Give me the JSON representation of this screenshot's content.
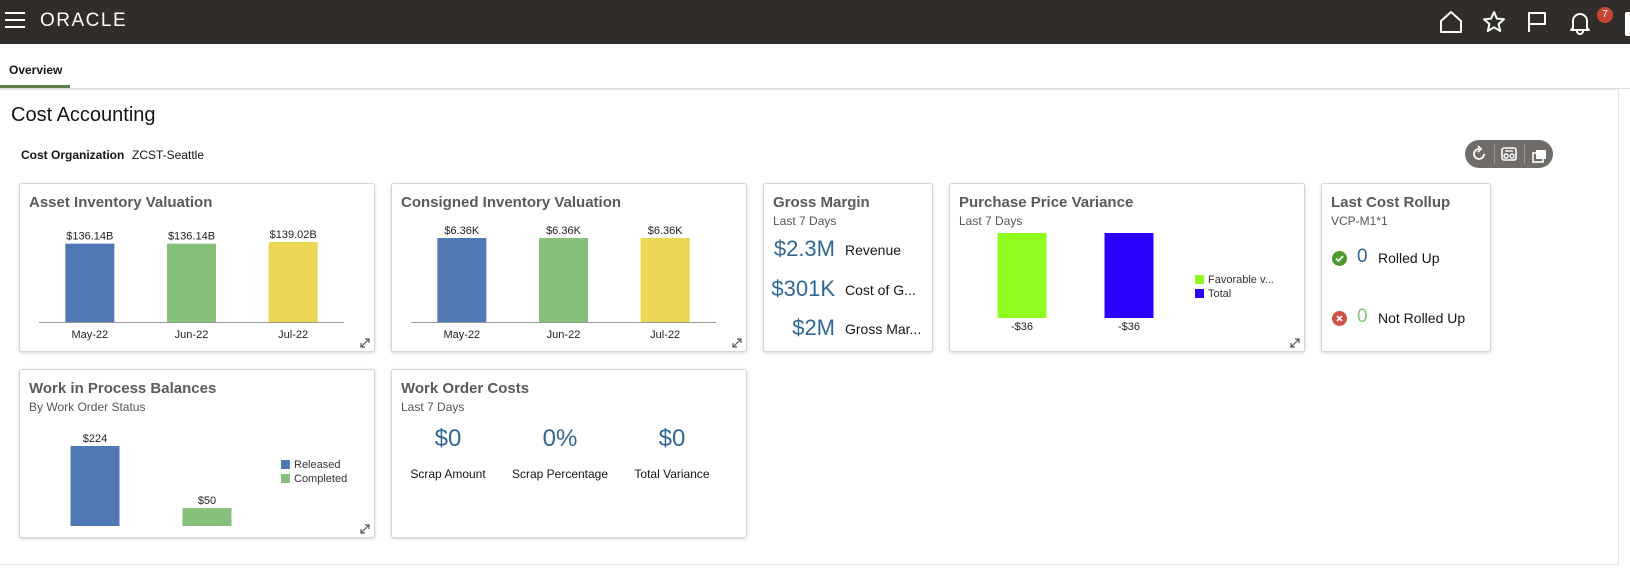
{
  "header": {
    "logo": "ORACLE",
    "notification_count": "7",
    "icons": [
      "menu-icon",
      "home-icon",
      "star-icon",
      "flag-icon",
      "bell-icon"
    ]
  },
  "tabs": [
    {
      "label": "Overview",
      "active": true
    }
  ],
  "page": {
    "title": "Cost Accounting",
    "org_label": "Cost Organization",
    "org_value": "ZCST-Seattle"
  },
  "toolbar": {
    "icons": [
      "refresh-icon",
      "settings-icon",
      "copy-icon"
    ]
  },
  "colors": {
    "blue": "#4f78b5",
    "green": "#87c07a",
    "yellow": "#ecd653",
    "lime": "#8ffc1e",
    "indigo": "#2c00fd",
    "kpi_blue": "#2f6694",
    "success": "#4c9a2a",
    "error": "#d25145"
  },
  "asset_inventory": {
    "title": "Asset Inventory Valuation",
    "chart_data": {
      "type": "bar",
      "categories": [
        "May-22",
        "Jun-22",
        "Jul-22"
      ],
      "values": [
        136.14,
        136.14,
        139.02
      ],
      "value_labels": [
        "$136.14B",
        "$136.14B",
        "$139.02B"
      ],
      "ylim": [
        0,
        139.02
      ]
    }
  },
  "consigned_inventory": {
    "title": "Consigned Inventory Valuation",
    "chart_data": {
      "type": "bar",
      "categories": [
        "May-22",
        "Jun-22",
        "Jul-22"
      ],
      "values": [
        6.36,
        6.36,
        6.36
      ],
      "value_labels": [
        "$6.36K",
        "$6.36K",
        "$6.36K"
      ],
      "ylim": [
        0,
        6.36
      ]
    }
  },
  "gross_margin": {
    "title": "Gross Margin",
    "subtitle": "Last 7 Days",
    "rows": [
      {
        "value": "$2.3M",
        "label": "Revenue"
      },
      {
        "value": "$301K",
        "label": "Cost of G..."
      },
      {
        "value": "$2M",
        "label": "Gross Mar..."
      }
    ]
  },
  "purchase_price_variance": {
    "title": "Purchase Price Variance",
    "subtitle": "Last 7 Days",
    "chart_data": {
      "type": "bar",
      "series": [
        {
          "name": "Favorable v...",
          "values": [
            -36
          ]
        },
        {
          "name": "Total",
          "values": [
            -36
          ]
        }
      ],
      "value_labels": [
        "-$36",
        "-$36"
      ]
    }
  },
  "last_cost_rollup": {
    "title": "Last Cost Rollup",
    "subtitle": "VCP-M1*1",
    "rows": [
      {
        "count": "0",
        "label": "Rolled Up",
        "status": "success"
      },
      {
        "count": "0",
        "label": "Not Rolled Up",
        "status": "error"
      }
    ]
  },
  "wip_balances": {
    "title": "Work in Process Balances",
    "subtitle": "By Work Order Status",
    "chart_data": {
      "type": "bar",
      "series": [
        {
          "name": "Released",
          "values": [
            224
          ]
        },
        {
          "name": "Completed",
          "values": [
            50
          ]
        }
      ],
      "value_labels": [
        "$224",
        "$50"
      ],
      "ylim": [
        0,
        224
      ]
    }
  },
  "work_order_costs": {
    "title": "Work Order Costs",
    "subtitle": "Last 7 Days",
    "metrics": [
      {
        "value": "$0",
        "label": "Scrap Amount"
      },
      {
        "value": "0%",
        "label": "Scrap Percentage"
      },
      {
        "value": "$0",
        "label": "Total Variance"
      }
    ]
  }
}
